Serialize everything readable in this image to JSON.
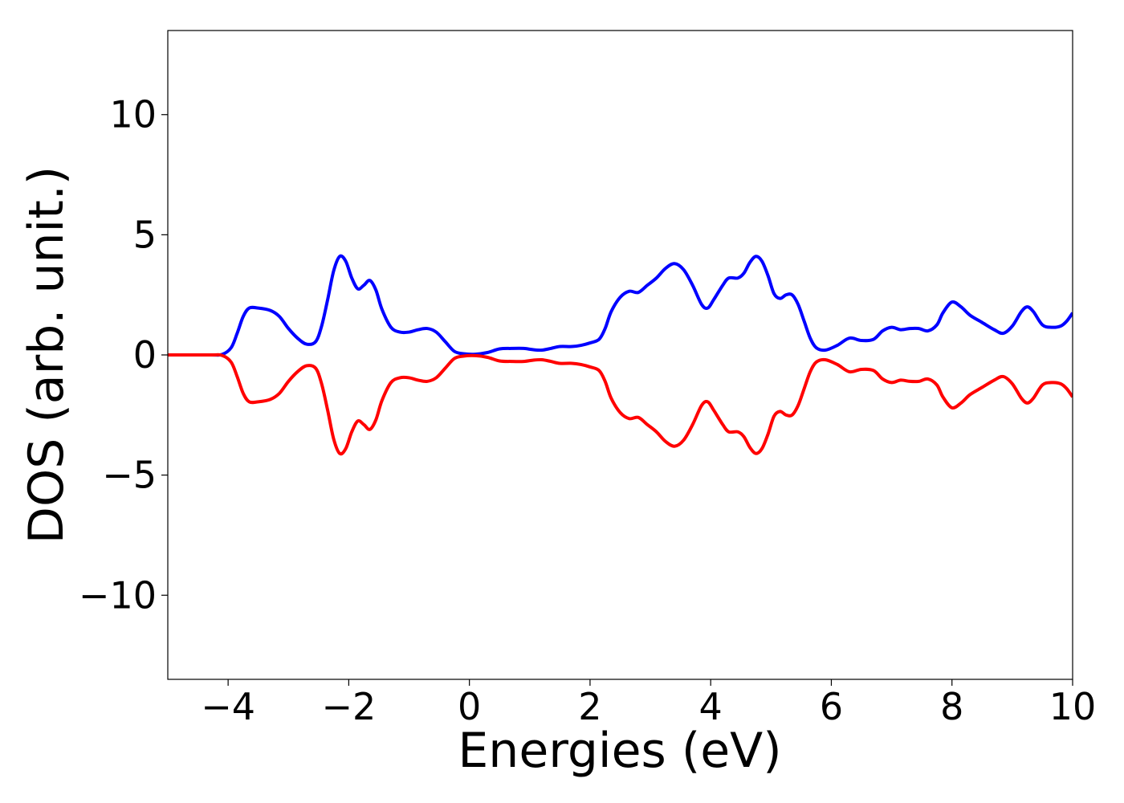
{
  "chart_data": {
    "type": "line",
    "title": "",
    "xlabel": "Energies (eV)",
    "ylabel": "DOS (arb. unit.)",
    "xlim": [
      -5,
      10
    ],
    "ylim": [
      -13.5,
      13.5
    ],
    "xticks": [
      -4,
      -2,
      0,
      2,
      4,
      6,
      8,
      10
    ],
    "xtick_labels": [
      "−4",
      "−2",
      "0",
      "2",
      "4",
      "6",
      "8",
      "10"
    ],
    "yticks": [
      -10,
      -5,
      0,
      5,
      10
    ],
    "ytick_labels": [
      "−10",
      "−5",
      "0",
      "5",
      "10"
    ],
    "grid": false,
    "legend": "none",
    "series": [
      {
        "color": "#0000ff",
        "points": [
          [
            -5,
            0
          ],
          [
            -4.3,
            0
          ],
          [
            -4.1,
            0.02
          ],
          [
            -3.95,
            0.3
          ],
          [
            -3.85,
            0.9
          ],
          [
            -3.75,
            1.6
          ],
          [
            -3.65,
            1.95
          ],
          [
            -3.5,
            1.95
          ],
          [
            -3.3,
            1.85
          ],
          [
            -3.15,
            1.6
          ],
          [
            -3.0,
            1.1
          ],
          [
            -2.85,
            0.7
          ],
          [
            -2.7,
            0.45
          ],
          [
            -2.55,
            0.55
          ],
          [
            -2.45,
            1.2
          ],
          [
            -2.35,
            2.3
          ],
          [
            -2.25,
            3.5
          ],
          [
            -2.15,
            4.1
          ],
          [
            -2.05,
            3.9
          ],
          [
            -1.95,
            3.2
          ],
          [
            -1.85,
            2.75
          ],
          [
            -1.75,
            2.9
          ],
          [
            -1.65,
            3.1
          ],
          [
            -1.55,
            2.7
          ],
          [
            -1.45,
            1.9
          ],
          [
            -1.3,
            1.15
          ],
          [
            -1.15,
            0.95
          ],
          [
            -1.0,
            0.95
          ],
          [
            -0.85,
            1.05
          ],
          [
            -0.7,
            1.1
          ],
          [
            -0.55,
            0.95
          ],
          [
            -0.4,
            0.55
          ],
          [
            -0.25,
            0.15
          ],
          [
            -0.1,
            0.05
          ],
          [
            0.1,
            0.03
          ],
          [
            0.3,
            0.1
          ],
          [
            0.5,
            0.25
          ],
          [
            0.7,
            0.27
          ],
          [
            0.9,
            0.27
          ],
          [
            1.05,
            0.22
          ],
          [
            1.2,
            0.2
          ],
          [
            1.35,
            0.27
          ],
          [
            1.5,
            0.35
          ],
          [
            1.7,
            0.35
          ],
          [
            1.85,
            0.4
          ],
          [
            2.0,
            0.5
          ],
          [
            2.15,
            0.65
          ],
          [
            2.25,
            1.1
          ],
          [
            2.35,
            1.8
          ],
          [
            2.5,
            2.4
          ],
          [
            2.65,
            2.65
          ],
          [
            2.8,
            2.6
          ],
          [
            2.95,
            2.9
          ],
          [
            3.1,
            3.2
          ],
          [
            3.25,
            3.6
          ],
          [
            3.4,
            3.8
          ],
          [
            3.55,
            3.55
          ],
          [
            3.7,
            2.9
          ],
          [
            3.85,
            2.1
          ],
          [
            3.95,
            1.95
          ],
          [
            4.05,
            2.3
          ],
          [
            4.2,
            2.9
          ],
          [
            4.3,
            3.2
          ],
          [
            4.45,
            3.2
          ],
          [
            4.55,
            3.4
          ],
          [
            4.65,
            3.85
          ],
          [
            4.75,
            4.1
          ],
          [
            4.85,
            3.9
          ],
          [
            4.95,
            3.3
          ],
          [
            5.05,
            2.55
          ],
          [
            5.15,
            2.35
          ],
          [
            5.25,
            2.5
          ],
          [
            5.35,
            2.5
          ],
          [
            5.45,
            2.1
          ],
          [
            5.55,
            1.4
          ],
          [
            5.65,
            0.7
          ],
          [
            5.75,
            0.3
          ],
          [
            5.9,
            0.2
          ],
          [
            6.1,
            0.4
          ],
          [
            6.3,
            0.7
          ],
          [
            6.5,
            0.6
          ],
          [
            6.7,
            0.65
          ],
          [
            6.85,
            1.0
          ],
          [
            7.0,
            1.15
          ],
          [
            7.15,
            1.05
          ],
          [
            7.3,
            1.1
          ],
          [
            7.45,
            1.1
          ],
          [
            7.6,
            1.0
          ],
          [
            7.75,
            1.25
          ],
          [
            7.85,
            1.75
          ],
          [
            8.0,
            2.2
          ],
          [
            8.15,
            2.0
          ],
          [
            8.3,
            1.65
          ],
          [
            8.5,
            1.35
          ],
          [
            8.7,
            1.05
          ],
          [
            8.85,
            0.9
          ],
          [
            9.0,
            1.2
          ],
          [
            9.15,
            1.8
          ],
          [
            9.25,
            2.0
          ],
          [
            9.35,
            1.8
          ],
          [
            9.5,
            1.25
          ],
          [
            9.65,
            1.15
          ],
          [
            9.8,
            1.2
          ],
          [
            9.9,
            1.4
          ],
          [
            10.0,
            1.75
          ]
        ]
      },
      {
        "color": "#ff0000",
        "points": [
          [
            -5,
            0
          ],
          [
            -4.3,
            0
          ],
          [
            -4.1,
            -0.02
          ],
          [
            -3.95,
            -0.3
          ],
          [
            -3.85,
            -0.9
          ],
          [
            -3.75,
            -1.6
          ],
          [
            -3.65,
            -1.95
          ],
          [
            -3.5,
            -1.95
          ],
          [
            -3.3,
            -1.85
          ],
          [
            -3.15,
            -1.6
          ],
          [
            -3.0,
            -1.1
          ],
          [
            -2.85,
            -0.7
          ],
          [
            -2.7,
            -0.45
          ],
          [
            -2.55,
            -0.55
          ],
          [
            -2.45,
            -1.2
          ],
          [
            -2.35,
            -2.3
          ],
          [
            -2.25,
            -3.5
          ],
          [
            -2.15,
            -4.1
          ],
          [
            -2.05,
            -3.9
          ],
          [
            -1.95,
            -3.2
          ],
          [
            -1.85,
            -2.75
          ],
          [
            -1.75,
            -2.9
          ],
          [
            -1.65,
            -3.1
          ],
          [
            -1.55,
            -2.7
          ],
          [
            -1.45,
            -1.9
          ],
          [
            -1.3,
            -1.15
          ],
          [
            -1.15,
            -0.95
          ],
          [
            -1.0,
            -0.95
          ],
          [
            -0.85,
            -1.05
          ],
          [
            -0.7,
            -1.1
          ],
          [
            -0.55,
            -0.95
          ],
          [
            -0.4,
            -0.55
          ],
          [
            -0.25,
            -0.15
          ],
          [
            -0.1,
            -0.05
          ],
          [
            0.1,
            -0.03
          ],
          [
            0.3,
            -0.1
          ],
          [
            0.5,
            -0.25
          ],
          [
            0.7,
            -0.27
          ],
          [
            0.9,
            -0.27
          ],
          [
            1.05,
            -0.22
          ],
          [
            1.2,
            -0.2
          ],
          [
            1.35,
            -0.27
          ],
          [
            1.5,
            -0.35
          ],
          [
            1.7,
            -0.35
          ],
          [
            1.85,
            -0.4
          ],
          [
            2.0,
            -0.5
          ],
          [
            2.15,
            -0.65
          ],
          [
            2.25,
            -1.1
          ],
          [
            2.35,
            -1.8
          ],
          [
            2.5,
            -2.4
          ],
          [
            2.65,
            -2.65
          ],
          [
            2.8,
            -2.6
          ],
          [
            2.95,
            -2.9
          ],
          [
            3.1,
            -3.2
          ],
          [
            3.25,
            -3.6
          ],
          [
            3.4,
            -3.8
          ],
          [
            3.55,
            -3.55
          ],
          [
            3.7,
            -2.9
          ],
          [
            3.85,
            -2.1
          ],
          [
            3.95,
            -1.95
          ],
          [
            4.05,
            -2.3
          ],
          [
            4.2,
            -2.9
          ],
          [
            4.3,
            -3.2
          ],
          [
            4.45,
            -3.2
          ],
          [
            4.55,
            -3.4
          ],
          [
            4.65,
            -3.85
          ],
          [
            4.75,
            -4.1
          ],
          [
            4.85,
            -3.9
          ],
          [
            4.95,
            -3.3
          ],
          [
            5.05,
            -2.55
          ],
          [
            5.15,
            -2.35
          ],
          [
            5.25,
            -2.5
          ],
          [
            5.35,
            -2.5
          ],
          [
            5.45,
            -2.1
          ],
          [
            5.55,
            -1.4
          ],
          [
            5.65,
            -0.7
          ],
          [
            5.75,
            -0.3
          ],
          [
            5.9,
            -0.2
          ],
          [
            6.1,
            -0.4
          ],
          [
            6.3,
            -0.7
          ],
          [
            6.5,
            -0.6
          ],
          [
            6.7,
            -0.65
          ],
          [
            6.85,
            -1.0
          ],
          [
            7.0,
            -1.15
          ],
          [
            7.15,
            -1.05
          ],
          [
            7.3,
            -1.1
          ],
          [
            7.45,
            -1.1
          ],
          [
            7.6,
            -1.0
          ],
          [
            7.75,
            -1.25
          ],
          [
            7.85,
            -1.75
          ],
          [
            8.0,
            -2.2
          ],
          [
            8.15,
            -2.0
          ],
          [
            8.3,
            -1.65
          ],
          [
            8.5,
            -1.35
          ],
          [
            8.7,
            -1.05
          ],
          [
            8.85,
            -0.9
          ],
          [
            9.0,
            -1.2
          ],
          [
            9.15,
            -1.8
          ],
          [
            9.25,
            -2.0
          ],
          [
            9.35,
            -1.8
          ],
          [
            9.5,
            -1.25
          ],
          [
            9.65,
            -1.15
          ],
          [
            9.8,
            -1.2
          ],
          [
            9.9,
            -1.4
          ],
          [
            10.0,
            -1.75
          ]
        ]
      }
    ]
  }
}
